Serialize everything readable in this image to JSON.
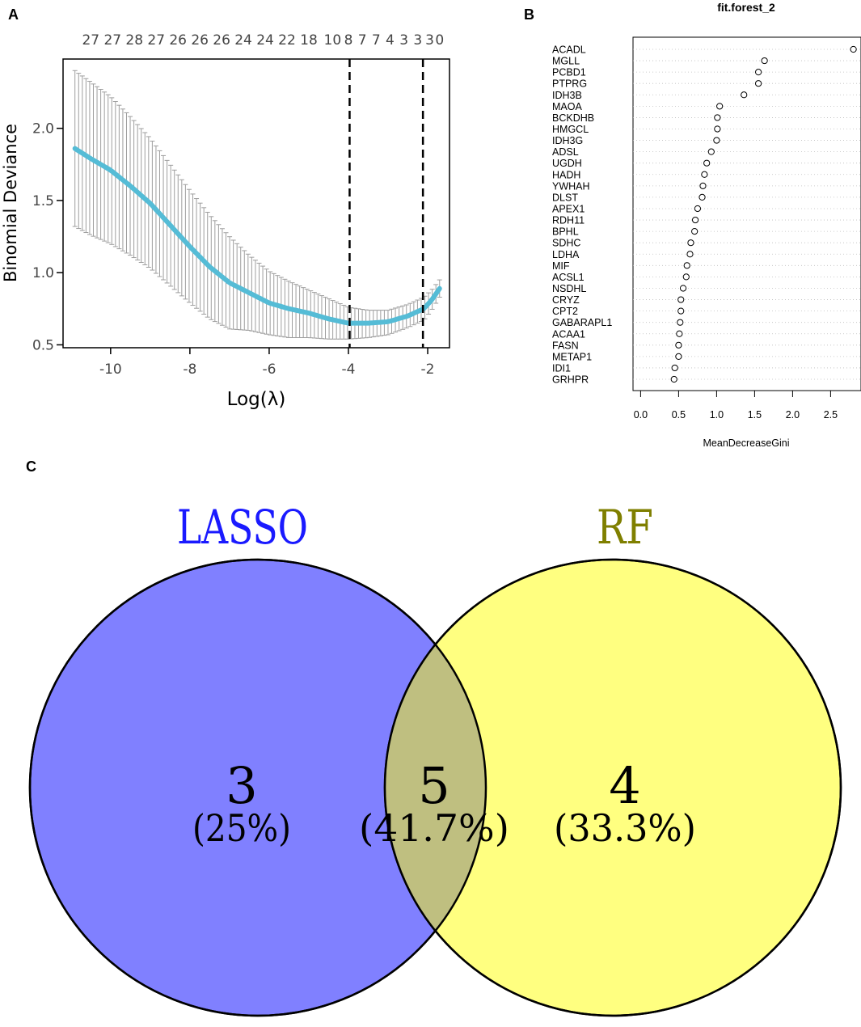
{
  "panels": {
    "a": "A",
    "b": "B",
    "c": "C"
  },
  "chart_data": [
    {
      "type": "line",
      "panel": "A",
      "xlabel": "Log(λ)",
      "ylabel": "Binomial Deviance",
      "xlim": [
        -11.2,
        -1.45
      ],
      "ylim": [
        0.48,
        2.48
      ],
      "xticks": [
        -10,
        -8,
        -6,
        -4,
        -2
      ],
      "xtick_labels": [
        "-10",
        "-8",
        "-6",
        "-4",
        "-2"
      ],
      "yticks": [
        0.5,
        1.0,
        1.5,
        2.0
      ],
      "ytick_labels": [
        "0.5",
        "1.0",
        "1.5",
        "2.0"
      ],
      "top_axis_labels": [
        "27",
        "27",
        "28",
        "27",
        "26",
        "26",
        "26",
        "24",
        "24",
        "22",
        "18",
        "10",
        "8",
        "7",
        "7",
        "4",
        "3",
        "3",
        "3",
        "0"
      ],
      "top_axis_positions": [
        -10.5,
        -9.95,
        -9.4,
        -8.85,
        -8.3,
        -7.75,
        -7.2,
        -6.65,
        -6.1,
        -5.55,
        -5.0,
        -4.4,
        -4.0,
        -3.65,
        -3.3,
        -2.95,
        -2.6,
        -2.25,
        -1.95,
        -1.7
      ],
      "vlines": [
        -3.97,
        -2.12
      ],
      "x": [
        -10.9,
        -10.5,
        -10.0,
        -9.5,
        -9.0,
        -8.5,
        -8.0,
        -7.5,
        -7.0,
        -6.5,
        -6.0,
        -5.5,
        -5.0,
        -4.5,
        -4.0,
        -3.5,
        -3.0,
        -2.5,
        -2.1,
        -1.9,
        -1.7
      ],
      "mean": [
        1.86,
        1.79,
        1.71,
        1.6,
        1.48,
        1.33,
        1.18,
        1.04,
        0.93,
        0.86,
        0.79,
        0.75,
        0.72,
        0.68,
        0.65,
        0.65,
        0.66,
        0.7,
        0.75,
        0.81,
        0.89
      ],
      "upper": [
        2.4,
        2.32,
        2.22,
        2.08,
        1.93,
        1.75,
        1.57,
        1.4,
        1.25,
        1.12,
        1.01,
        0.94,
        0.88,
        0.82,
        0.76,
        0.74,
        0.74,
        0.78,
        0.83,
        0.88,
        0.95
      ],
      "lower": [
        1.32,
        1.26,
        1.2,
        1.12,
        1.03,
        0.91,
        0.79,
        0.68,
        0.61,
        0.6,
        0.57,
        0.55,
        0.55,
        0.54,
        0.54,
        0.55,
        0.57,
        0.62,
        0.67,
        0.74,
        0.83
      ],
      "line_color": "#55bcd6",
      "error_color": "#9e9e9e"
    },
    {
      "type": "scatter",
      "panel": "B",
      "title": "fit.forest_2",
      "xlabel": "MeanDecreaseGini",
      "xlim": [
        -0.1,
        2.9
      ],
      "xticks": [
        0.0,
        0.5,
        1.0,
        1.5,
        2.0,
        2.5
      ],
      "xtick_labels": [
        "0.0",
        "0.5",
        "1.0",
        "1.5",
        "2.0",
        "2.5"
      ],
      "categories": [
        "ACADL",
        "MGLL",
        "PCBD1",
        "PTPRG",
        "IDH3B",
        "MAOA",
        "BCKDHB",
        "HMGCL",
        "IDH3G",
        "ADSL",
        "UGDH",
        "HADH",
        "YWHAH",
        "DLST",
        "APEX1",
        "RDH11",
        "BPHL",
        "SDHC",
        "LDHA",
        "MIF",
        "ACSL1",
        "NSDHL",
        "CRYZ",
        "CPT2",
        "GABARAPL1",
        "ACAA1",
        "FASN",
        "METAP1",
        "IDI1",
        "GRHPR"
      ],
      "values": [
        2.8,
        1.63,
        1.55,
        1.55,
        1.36,
        1.04,
        1.01,
        1.01,
        1.0,
        0.93,
        0.87,
        0.84,
        0.82,
        0.81,
        0.75,
        0.72,
        0.71,
        0.66,
        0.65,
        0.61,
        0.6,
        0.56,
        0.53,
        0.53,
        0.52,
        0.51,
        0.5,
        0.5,
        0.45,
        0.44
      ]
    },
    {
      "type": "venn",
      "panel": "C",
      "sets": [
        {
          "name": "LASSO",
          "color": "#8080ff",
          "label_color": "#1a1aff"
        },
        {
          "name": "RF",
          "color": "#ffff80",
          "label_color": "#7f7f00"
        }
      ],
      "overlap_color": "#bfbf80",
      "regions": [
        {
          "region": "LASSO only",
          "count": "3",
          "percent": "(25%)"
        },
        {
          "region": "LASSO ∩ RF",
          "count": "5",
          "percent": "(41.7%)"
        },
        {
          "region": "RF only",
          "count": "4",
          "percent": "(33.3%)"
        }
      ]
    }
  ]
}
